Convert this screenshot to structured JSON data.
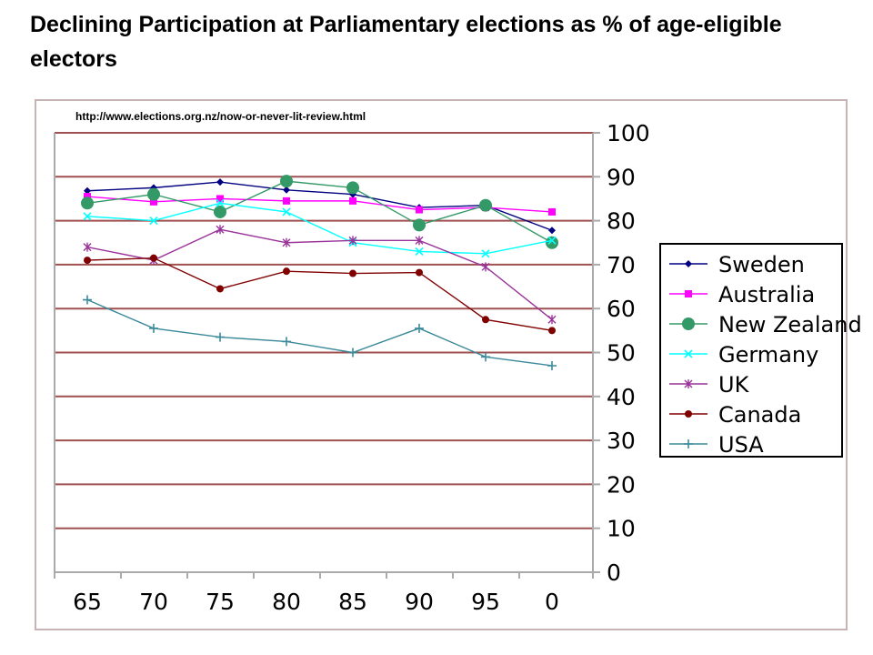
{
  "header": {
    "title": "Declining Participation at Parliamentary elections as % of age-eligible electors"
  },
  "chart_data": {
    "type": "line",
    "title": "",
    "annotation": "http://www.elections.org.nz/now-or-never-lit-review.html",
    "xlabel": "",
    "ylabel": "",
    "categories": [
      "65",
      "70",
      "75",
      "80",
      "85",
      "90",
      "95",
      "0"
    ],
    "ylim": [
      0,
      100
    ],
    "yticks": [
      0,
      10,
      20,
      30,
      40,
      50,
      60,
      70,
      80,
      90,
      100
    ],
    "y_axis_side": "right",
    "grid": true,
    "grid_color": "#a05050",
    "legend_position": "right",
    "series": [
      {
        "name": "Sweden",
        "color": "#000080",
        "marker": "diamond",
        "values": [
          86.8,
          87.5,
          88.8,
          87.0,
          86.0,
          83.0,
          83.5,
          77.8
        ]
      },
      {
        "name": "Australia",
        "color": "#ff00ff",
        "marker": "square",
        "values": [
          85.5,
          84.3,
          85.0,
          84.5,
          84.5,
          82.5,
          83.0,
          82.0
        ]
      },
      {
        "name": "New Zealand",
        "color": "#339966",
        "marker": "circle",
        "values": [
          84.0,
          86.0,
          82.0,
          89.0,
          87.5,
          79.0,
          83.5,
          75.0
        ]
      },
      {
        "name": "Germany",
        "color": "#00ffff",
        "marker": "x",
        "values": [
          81.0,
          80.0,
          84.0,
          82.0,
          75.0,
          73.0,
          72.5,
          75.5
        ]
      },
      {
        "name": "UK",
        "color": "#993399",
        "marker": "star",
        "values": [
          74.0,
          71.0,
          78.0,
          75.0,
          75.5,
          75.5,
          69.5,
          57.5
        ]
      },
      {
        "name": "Canada",
        "color": "#800000",
        "marker": "circle-small",
        "values": [
          71.0,
          71.5,
          64.5,
          68.5,
          68.0,
          68.2,
          57.5,
          55.0
        ]
      },
      {
        "name": "USA",
        "color": "#3a8a9a",
        "marker": "plus",
        "values": [
          62.0,
          55.5,
          53.5,
          52.5,
          50.0,
          55.5,
          49.0,
          47.0
        ]
      }
    ]
  }
}
